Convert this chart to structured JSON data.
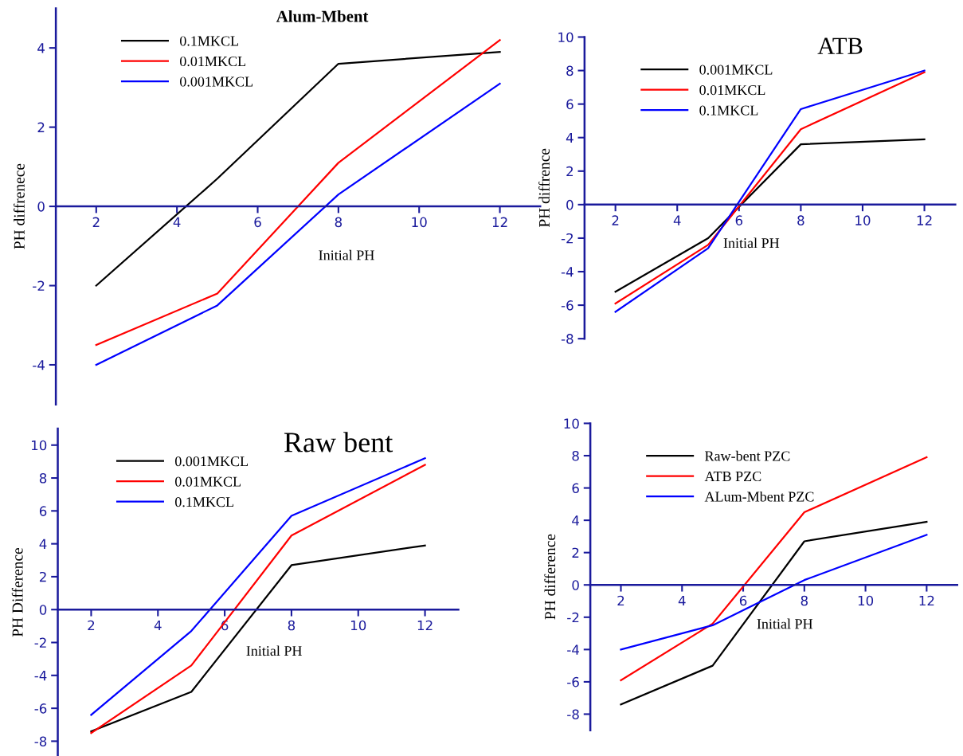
{
  "chart_data": [
    {
      "type": "line",
      "title": "Alum-Mbent",
      "xlabel": "Initial PH",
      "ylabel": "PH diffrenece",
      "x": [
        2,
        5,
        8,
        12
      ],
      "xlim": [
        1,
        13
      ],
      "xticks": [
        2,
        4,
        6,
        8,
        10,
        12
      ],
      "ylim": [
        -5,
        5
      ],
      "yticks": [
        -4,
        -2,
        0,
        2,
        4
      ],
      "legend": "top left",
      "grid": false,
      "series": [
        {
          "name": "0.1MKCL",
          "color": "#000000",
          "values": [
            -2,
            0.7,
            3.6,
            3.9
          ]
        },
        {
          "name": "0.01MKCL",
          "color": "#ff0000",
          "values": [
            -3.5,
            -2.2,
            1.1,
            4.2
          ]
        },
        {
          "name": "0.001MKCL",
          "color": "#0000ff",
          "values": [
            -4,
            -2.5,
            0.3,
            3.1
          ]
        }
      ]
    },
    {
      "type": "line",
      "title": "ATB",
      "xlabel": "Initial PH",
      "ylabel": "PH diffrence",
      "x": [
        2,
        5,
        8,
        12
      ],
      "xlim": [
        1,
        13
      ],
      "xticks": [
        2,
        4,
        6,
        8,
        10,
        12
      ],
      "ylim": [
        -8,
        10
      ],
      "yticks": [
        -8,
        -6,
        -4,
        -2,
        0,
        2,
        4,
        6,
        8,
        10
      ],
      "legend": "top left",
      "grid": false,
      "series": [
        {
          "name": "0.001MKCL",
          "color": "#000000",
          "values": [
            -5.2,
            -2,
            3.6,
            3.9
          ]
        },
        {
          "name": "0.01MKCL",
          "color": "#ff0000",
          "values": [
            -5.9,
            -2.4,
            4.5,
            7.9
          ]
        },
        {
          "name": "0.1MKCL",
          "color": "#0000ff",
          "values": [
            -6.4,
            -2.6,
            5.7,
            8.0
          ]
        }
      ]
    },
    {
      "type": "line",
      "title": "Raw bent",
      "xlabel": "Initial PH",
      "ylabel": "PH Difference",
      "x": [
        2,
        5,
        8,
        12
      ],
      "xlim": [
        1,
        13
      ],
      "xticks": [
        2,
        4,
        6,
        8,
        10,
        12
      ],
      "ylim": [
        -8.9,
        11
      ],
      "yticks": [
        -8,
        -6,
        -4,
        -2,
        0,
        2,
        4,
        6,
        8,
        10
      ],
      "legend": "top left",
      "grid": false,
      "series": [
        {
          "name": "0.001MKCL",
          "color": "#000000",
          "values": [
            -7.4,
            -5,
            2.7,
            3.9
          ]
        },
        {
          "name": "0.01MKCL",
          "color": "#ff0000",
          "values": [
            -7.5,
            -3.4,
            4.5,
            8.8
          ]
        },
        {
          "name": "0.1MKCL",
          "color": "#0000ff",
          "values": [
            -6.4,
            -1.3,
            5.7,
            9.2
          ]
        }
      ]
    },
    {
      "type": "line",
      "xlabel": "Initial PH",
      "ylabel": "PH difference",
      "x": [
        2,
        5,
        8,
        12
      ],
      "xlim": [
        1,
        13
      ],
      "xticks": [
        2,
        4,
        6,
        8,
        10,
        12
      ],
      "ylim": [
        -9,
        10
      ],
      "yticks": [
        -8,
        -6,
        -4,
        -2,
        0,
        2,
        4,
        6,
        8,
        10
      ],
      "legend": "top left",
      "grid": false,
      "series": [
        {
          "name": "Raw-bent PZC",
          "color": "#000000",
          "values": [
            -7.4,
            -5,
            2.7,
            3.9
          ]
        },
        {
          "name": "ATB PZC",
          "color": "#ff0000",
          "values": [
            -5.9,
            -2.4,
            4.5,
            7.9
          ]
        },
        {
          "name": "ALum-Mbent PZC",
          "color": "#0000ff",
          "values": [
            -4,
            -2.5,
            0.3,
            3.1
          ]
        }
      ]
    }
  ]
}
